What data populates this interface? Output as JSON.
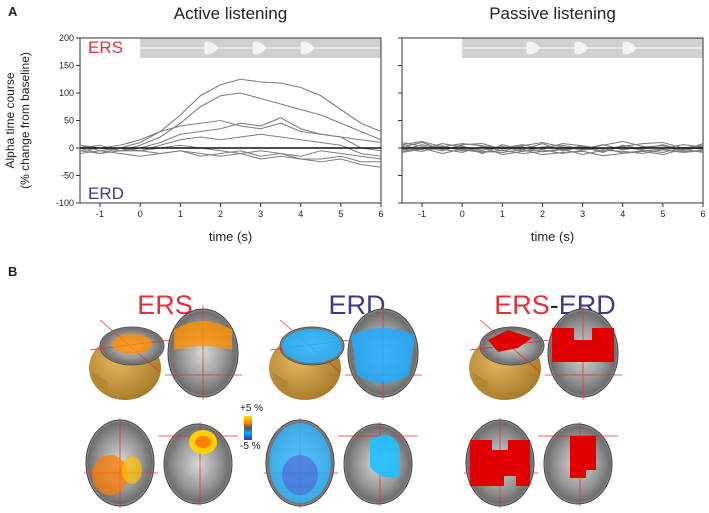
{
  "panel_labels": {
    "a": "A",
    "b": "B"
  },
  "chart_data": [
    {
      "type": "line",
      "title": "Active listening",
      "ylabel": [
        "Alpha time course",
        "(% change from baseline)"
      ],
      "xlabel": "time (s)",
      "x": [
        -1.5,
        -1,
        -0.5,
        0,
        0.5,
        1,
        1.5,
        2,
        2.5,
        3,
        3.5,
        4,
        4.5,
        5,
        5.5,
        6
      ],
      "xlim": [
        -1.5,
        6
      ],
      "xticks": [
        -1,
        0,
        1,
        2,
        3,
        4,
        5,
        6
      ],
      "ylim": [
        -100,
        200
      ],
      "yticks": [
        -100,
        -50,
        0,
        50,
        100,
        150,
        200
      ],
      "hline": 0,
      "stimulus": {
        "start": 0,
        "end": 6
      },
      "annotations": [
        {
          "text": "ERS",
          "color": "#e0303c",
          "position": "top-left"
        },
        {
          "text": "ERD",
          "color": "#3a3a8a",
          "position": "bottom-left"
        }
      ],
      "series": [
        {
          "color": "#7f7f7f",
          "values": [
            5,
            -5,
            0,
            10,
            30,
            60,
            95,
            115,
            125,
            120,
            118,
            110,
            95,
            70,
            45,
            30
          ]
        },
        {
          "color": "#7f7f7f",
          "values": [
            0,
            5,
            -5,
            5,
            20,
            45,
            75,
            95,
            100,
            90,
            80,
            70,
            60,
            45,
            30,
            15
          ]
        },
        {
          "color": "#7f7f7f",
          "values": [
            -5,
            0,
            5,
            15,
            30,
            40,
            45,
            50,
            40,
            35,
            45,
            30,
            25,
            20,
            15,
            10
          ]
        },
        {
          "color": "#7f7f7f",
          "values": [
            5,
            0,
            -5,
            0,
            10,
            25,
            30,
            35,
            45,
            40,
            55,
            35,
            25,
            20,
            0,
            -5
          ]
        },
        {
          "color": "#7f7f7f",
          "values": [
            0,
            -10,
            -5,
            -5,
            5,
            15,
            20,
            15,
            20,
            25,
            20,
            15,
            10,
            5,
            -10,
            -15
          ]
        },
        {
          "color": "#7f7f7f",
          "values": [
            -10,
            -5,
            -10,
            -15,
            -10,
            -5,
            -10,
            -15,
            -10,
            -20,
            -15,
            -20,
            -25,
            -20,
            -30,
            -35
          ]
        },
        {
          "color": "#7f7f7f",
          "values": [
            5,
            0,
            -5,
            -5,
            -10,
            -5,
            -15,
            -10,
            -5,
            -15,
            -10,
            -20,
            -20,
            -15,
            -25,
            -25
          ]
        },
        {
          "color": "#7f7f7f",
          "values": [
            -5,
            -10,
            0,
            -5,
            0,
            5,
            0,
            -5,
            -10,
            -5,
            -10,
            -15,
            -5,
            -10,
            -15,
            -20
          ]
        }
      ]
    },
    {
      "type": "line",
      "title": "Passive listening",
      "xlabel": "time (s)",
      "x": [
        -1.5,
        -1,
        -0.5,
        0,
        0.5,
        1,
        1.5,
        2,
        2.5,
        3,
        3.5,
        4,
        4.5,
        5,
        5.5,
        6
      ],
      "xlim": [
        -1.5,
        6
      ],
      "xticks": [
        -1,
        0,
        1,
        2,
        3,
        4,
        5,
        6
      ],
      "ylim": [
        -100,
        200
      ],
      "yticks": [
        -100,
        -50,
        0,
        50,
        100,
        150,
        200
      ],
      "hline": 0,
      "stimulus": {
        "start": 0,
        "end": 6
      },
      "series": [
        {
          "color": "#7f7f7f",
          "values": [
            5,
            -3,
            8,
            2,
            -4,
            3,
            -6,
            2,
            5,
            -2,
            6,
            -3,
            2,
            4,
            -5,
            3
          ]
        },
        {
          "color": "#7f7f7f",
          "values": [
            -4,
            6,
            -2,
            -8,
            3,
            -5,
            2,
            -7,
            -3,
            4,
            -6,
            2,
            -4,
            -8,
            1,
            -2
          ]
        },
        {
          "color": "#7f7f7f",
          "values": [
            2,
            10,
            -3,
            4,
            -10,
            6,
            -3,
            8,
            -5,
            2,
            -8,
            5,
            -2,
            6,
            -4,
            8
          ]
        },
        {
          "color": "#7f7f7f",
          "values": [
            -8,
            -2,
            4,
            -5,
            2,
            -12,
            -6,
            -3,
            -10,
            -4,
            0,
            -9,
            -5,
            -2,
            -7,
            -4
          ]
        },
        {
          "color": "#7f7f7f",
          "values": [
            10,
            3,
            -5,
            6,
            8,
            -2,
            4,
            10,
            2,
            -3,
            5,
            12,
            3,
            -1,
            6,
            2
          ]
        },
        {
          "color": "#7f7f7f",
          "values": [
            -2,
            -6,
            2,
            -3,
            -8,
            -4,
            -10,
            -6,
            -2,
            -12,
            -4,
            -6,
            -10,
            -3,
            -8,
            -5
          ]
        },
        {
          "color": "#7f7f7f",
          "values": [
            6,
            12,
            2,
            8,
            4,
            0,
            6,
            -2,
            8,
            4,
            -2,
            3,
            8,
            10,
            0,
            5
          ]
        },
        {
          "color": "#7f7f7f",
          "values": [
            -6,
            0,
            -10,
            -2,
            -6,
            -8,
            -3,
            -12,
            -8,
            -6,
            -14,
            -10,
            -6,
            -12,
            -2,
            -8
          ]
        }
      ]
    }
  ],
  "brain_maps": {
    "titles": {
      "ers": "ERS",
      "erd": "ERD",
      "diff_left": "ERS",
      "diff_dash": "-",
      "diff_right": "ERD"
    },
    "colorbar": {
      "max_label": "+5 %",
      "min_label": "-5 %"
    }
  }
}
